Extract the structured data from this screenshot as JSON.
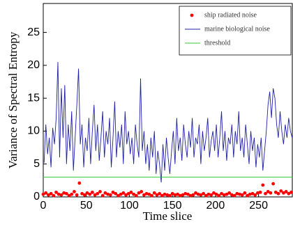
{
  "chart_data": {
    "type": "line",
    "xlabel": "Time slice",
    "ylabel": "Variance of Spectral Entropy",
    "xlim": [
      0,
      290
    ],
    "ylim": [
      0,
      29.4
    ],
    "xticks": [
      0,
      50,
      100,
      150,
      200,
      250
    ],
    "yticks": [
      0,
      5,
      10,
      15,
      20,
      25
    ],
    "legend": "upper right",
    "series": [
      {
        "name": "ship radiated noise",
        "type": "scatter",
        "color": "#ff0000",
        "x": [
          0,
          3,
          6,
          9,
          12,
          15,
          18,
          21,
          24,
          27,
          30,
          33,
          36,
          39,
          42,
          45,
          48,
          51,
          54,
          57,
          60,
          63,
          66,
          69,
          72,
          75,
          78,
          81,
          84,
          87,
          90,
          93,
          96,
          99,
          102,
          105,
          108,
          111,
          114,
          117,
          120,
          123,
          126,
          129,
          132,
          135,
          138,
          141,
          144,
          147,
          150,
          153,
          156,
          159,
          162,
          165,
          168,
          171,
          174,
          177,
          180,
          183,
          186,
          189,
          192,
          195,
          198,
          201,
          204,
          207,
          210,
          213,
          216,
          219,
          222,
          225,
          228,
          231,
          234,
          237,
          240,
          243,
          246,
          249,
          252,
          255,
          258,
          261,
          264,
          267,
          270,
          273,
          276,
          279,
          282,
          285,
          288
        ],
        "values": [
          0.4,
          0.6,
          0.3,
          0.5,
          0.2,
          0.7,
          0.4,
          0.3,
          0.6,
          0.5,
          0.2,
          0.4,
          0.8,
          0.3,
          2.1,
          0.5,
          0.3,
          0.6,
          0.4,
          0.7,
          0.3,
          0.5,
          0.8,
          0.2,
          0.6,
          0.4,
          0.3,
          0.7,
          0.5,
          0.2,
          0.4,
          0.6,
          0.3,
          0.5,
          0.7,
          0.4,
          0.2,
          0.6,
          0.8,
          0.3,
          0.5,
          0.4,
          0.2,
          0.6,
          0.3,
          0.5,
          0.2,
          0.4,
          0.3,
          0.2,
          0.5,
          0.3,
          0.4,
          0.2,
          0.3,
          0.5,
          0.4,
          0.2,
          0.3,
          0.6,
          0.4,
          0.3,
          0.5,
          0.2,
          0.4,
          0.3,
          0.6,
          0.4,
          0.2,
          0.5,
          0.3,
          0.4,
          0.6,
          0.3,
          0.2,
          0.5,
          0.4,
          0.3,
          0.6,
          0.2,
          0.4,
          0.5,
          0.3,
          0.6,
          0.7,
          1.8,
          0.5,
          0.8,
          0.6,
          2.0,
          0.7,
          0.5,
          0.9,
          0.6,
          0.8,
          0.5,
          0.7
        ]
      },
      {
        "name": "marine biological noise",
        "type": "line",
        "color": "#1f1fa8",
        "x": [
          1,
          3,
          5,
          7,
          9,
          11,
          13,
          15,
          17,
          19,
          21,
          23,
          25,
          27,
          29,
          31,
          33,
          35,
          37,
          39,
          41,
          43,
          45,
          47,
          49,
          51,
          53,
          55,
          57,
          59,
          61,
          63,
          65,
          67,
          69,
          71,
          73,
          75,
          77,
          79,
          81,
          83,
          85,
          87,
          89,
          91,
          93,
          95,
          97,
          99,
          101,
          103,
          105,
          107,
          109,
          111,
          113,
          115,
          117,
          119,
          121,
          123,
          125,
          127,
          129,
          131,
          133,
          135,
          137,
          139,
          141,
          143,
          145,
          147,
          149,
          151,
          153,
          155,
          157,
          159,
          161,
          163,
          165,
          167,
          169,
          171,
          173,
          175,
          177,
          179,
          181,
          183,
          185,
          187,
          189,
          191,
          193,
          195,
          197,
          199,
          201,
          203,
          205,
          207,
          209,
          211,
          213,
          215,
          217,
          219,
          221,
          223,
          225,
          227,
          229,
          231,
          233,
          235,
          237,
          239,
          241,
          243,
          245,
          247,
          249,
          251,
          253,
          255,
          257,
          259,
          261,
          263,
          265,
          267,
          269,
          271,
          273,
          275,
          277,
          279,
          281,
          283,
          285,
          287,
          289
        ],
        "values": [
          5.2,
          11,
          6.5,
          9,
          4.5,
          10.5,
          8,
          12,
          20.5,
          6,
          16.5,
          9,
          17,
          5,
          11,
          7,
          13,
          4,
          9,
          14,
          19.5,
          8,
          11,
          4.5,
          9,
          7,
          12,
          5,
          10,
          14,
          7,
          11,
          5.5,
          9,
          13,
          6,
          10,
          8,
          12,
          4.5,
          9,
          14.5,
          6,
          10,
          7.5,
          11,
          5,
          13,
          8,
          10,
          6.5,
          9,
          5,
          11,
          8,
          6,
          18,
          7,
          10,
          5,
          8,
          4,
          9,
          6,
          10,
          3.5,
          7,
          5,
          2.2,
          8,
          4,
          9,
          6,
          3.5,
          7,
          10,
          5,
          12,
          7,
          9,
          5.5,
          11,
          8,
          6,
          10,
          7.5,
          12,
          6,
          9,
          8,
          11,
          5,
          10,
          7,
          9,
          12,
          6,
          8.5,
          10,
          7,
          11,
          6,
          9,
          13,
          7,
          10,
          5.5,
          9,
          8,
          11,
          6,
          10,
          8,
          13,
          7,
          9,
          6,
          11,
          8,
          5,
          10,
          7,
          9,
          4.5,
          8,
          6,
          9,
          4,
          7,
          10,
          14,
          16,
          12,
          16.5,
          15,
          11,
          9,
          13,
          10,
          8,
          11,
          9,
          12,
          10,
          9
        ]
      },
      {
        "name": "threshold",
        "type": "line",
        "color": "#33cc33",
        "x": [
          0,
          290
        ],
        "values": [
          3,
          3
        ]
      }
    ]
  }
}
